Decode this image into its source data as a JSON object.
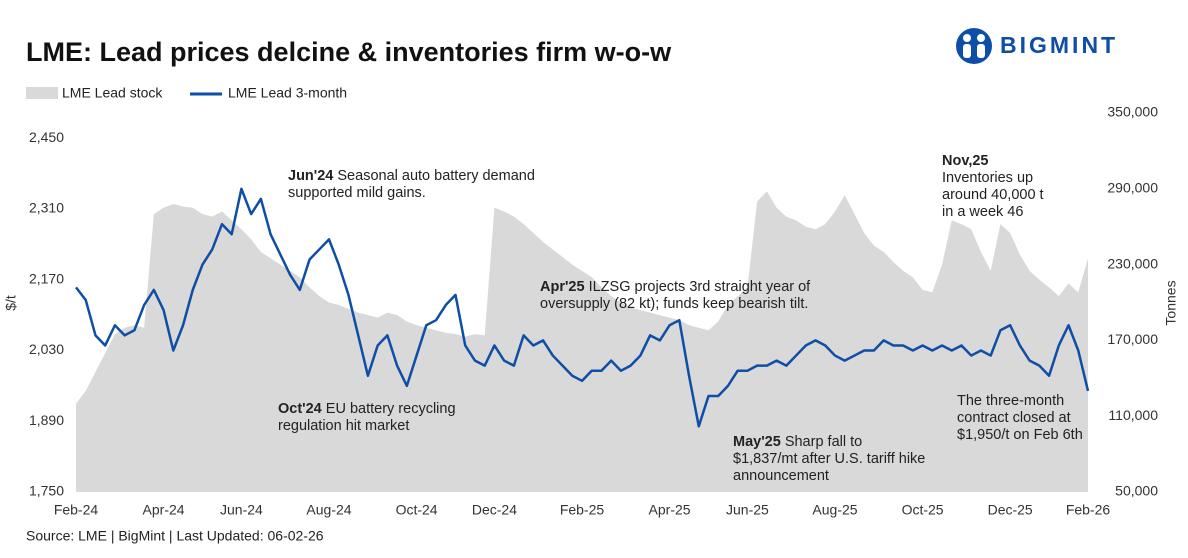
{
  "chart_data": {
    "type": "line",
    "title": "LME: Lead prices delcine & inventories firm w-o-w",
    "y_label": "$/t",
    "y2_label": "Tonnes",
    "source": "Source: LME | BigMint | Last Updated: 06-02-26",
    "grid": false,
    "ylim": [
      1750,
      2500
    ],
    "yticks": [
      {
        "value": 1750,
        "label": "1,750"
      },
      {
        "value": 1890,
        "label": "1,890"
      },
      {
        "value": 2030,
        "label": "2,030"
      },
      {
        "value": 2170,
        "label": "2,170"
      },
      {
        "value": 2310,
        "label": "2,310"
      },
      {
        "value": 2450,
        "label": "2,450"
      }
    ],
    "y2lim": [
      50000,
      350000
    ],
    "y2ticks": [
      {
        "value": 50000,
        "label": "50,000"
      },
      {
        "value": 110000,
        "label": "110,000"
      },
      {
        "value": 170000,
        "label": "170,000"
      },
      {
        "value": 230000,
        "label": "230,000"
      },
      {
        "value": 290000,
        "label": "290,000"
      },
      {
        "value": 350000,
        "label": "350,000"
      }
    ],
    "categories": [
      "Feb-24",
      null,
      null,
      null,
      null,
      null,
      null,
      null,
      null,
      "Apr-24",
      null,
      null,
      null,
      null,
      null,
      null,
      null,
      "Jun-24",
      null,
      null,
      null,
      null,
      null,
      null,
      null,
      null,
      "Aug-24",
      null,
      null,
      null,
      null,
      null,
      null,
      null,
      null,
      "Oct-24",
      null,
      null,
      null,
      null,
      null,
      null,
      null,
      "Dec-24",
      null,
      null,
      null,
      null,
      null,
      null,
      null,
      null,
      "Feb-25",
      null,
      null,
      null,
      null,
      null,
      null,
      null,
      null,
      "Apr-25",
      null,
      null,
      null,
      null,
      null,
      null,
      null,
      "Jun-25",
      null,
      null,
      null,
      null,
      null,
      null,
      null,
      null,
      "Aug-25",
      null,
      null,
      null,
      null,
      null,
      null,
      null,
      null,
      "Oct-25",
      null,
      null,
      null,
      null,
      null,
      null,
      null,
      null,
      "Dec-25",
      null,
      null,
      null,
      null,
      null,
      null,
      null,
      "Feb-26"
    ],
    "series": [
      {
        "name": "LME Lead stock",
        "type": "area",
        "axis": "y2",
        "color": "#d9d9d9",
        "values": [
          120000,
          130000,
          145000,
          160000,
          175000,
          180000,
          182000,
          180000,
          270000,
          275000,
          278000,
          276000,
          275000,
          270000,
          268000,
          272000,
          265000,
          258000,
          250000,
          240000,
          235000,
          230000,
          225000,
          220000,
          212000,
          205000,
          200000,
          198000,
          195000,
          192000,
          190000,
          188000,
          192000,
          190000,
          185000,
          182000,
          180000,
          178000,
          176000,
          175000,
          173000,
          175000,
          174000,
          275000,
          272000,
          268000,
          262000,
          255000,
          248000,
          242000,
          236000,
          230000,
          225000,
          220000,
          212000,
          205000,
          200000,
          196000,
          194000,
          192000,
          190000,
          188000,
          186000,
          182000,
          180000,
          178000,
          185000,
          198000,
          205000,
          212000,
          280000,
          288000,
          275000,
          268000,
          265000,
          260000,
          258000,
          262000,
          272000,
          285000,
          270000,
          255000,
          245000,
          240000,
          232000,
          225000,
          220000,
          210000,
          208000,
          230000,
          265000,
          262000,
          258000,
          240000,
          225000,
          262000,
          255000,
          238000,
          225000,
          218000,
          212000,
          205000,
          215000,
          208000,
          235000
        ]
      },
      {
        "name": "LME Lead 3-month",
        "type": "line",
        "color": "#0d4ea6",
        "values": [
          2155,
          2130,
          2060,
          2040,
          2080,
          2060,
          2070,
          2120,
          2150,
          2110,
          2030,
          2080,
          2150,
          2200,
          2230,
          2280,
          2260,
          2350,
          2300,
          2330,
          2260,
          2220,
          2180,
          2150,
          2210,
          2230,
          2250,
          2200,
          2140,
          2060,
          1980,
          2040,
          2060,
          2000,
          1960,
          2020,
          2080,
          2090,
          2120,
          2140,
          2040,
          2010,
          2000,
          2040,
          2010,
          2000,
          2060,
          2040,
          2050,
          2020,
          2000,
          1980,
          1970,
          1990,
          1990,
          2010,
          1990,
          2000,
          2020,
          2060,
          2050,
          2080,
          2090,
          1980,
          1880,
          1940,
          1940,
          1960,
          1990,
          1990,
          2000,
          2000,
          2010,
          2000,
          2020,
          2040,
          2050,
          2040,
          2020,
          2010,
          2020,
          2030,
          2030,
          2050,
          2040,
          2040,
          2030,
          2040,
          2030,
          2040,
          2030,
          2040,
          2020,
          2030,
          2020,
          2070,
          2080,
          2040,
          2010,
          2000,
          1980,
          2040,
          2080,
          2030,
          1950
        ]
      }
    ],
    "annotations": [
      {
        "lead": "Jun'24",
        "lines": [
          " Seasonal auto battery demand",
          "supported mild gains."
        ]
      },
      {
        "lead": "Oct'24",
        "lines": [
          " EU battery recycling",
          "regulation hit market"
        ]
      },
      {
        "lead": "Apr'25",
        "lines": [
          " ILZSG projects 3rd straight year of",
          "oversupply (82 kt); funds keep bearish tilt."
        ]
      },
      {
        "lead": "May'25",
        "lines": [
          " Sharp fall to",
          "$1,837/mt after U.S. tariff hike",
          "announcement"
        ]
      },
      {
        "lead": "Nov,25",
        "lines": [
          "Inventories up",
          "around 40,000 t",
          "in a week 46"
        ]
      },
      {
        "lines": [
          "The three-month",
          "contract closed at",
          "$1,950/t on Feb 6th"
        ]
      }
    ]
  },
  "logo": "BIGMINT"
}
